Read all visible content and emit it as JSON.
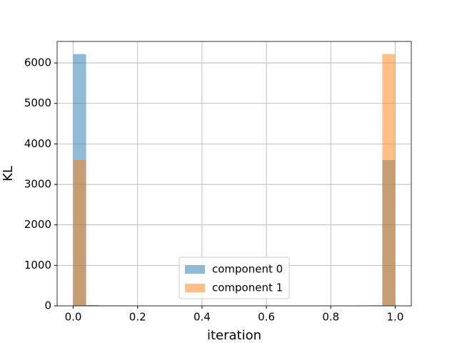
{
  "chart_data": {
    "type": "histogram",
    "x_label": "iteration",
    "y_label": "KL",
    "bins": [
      0,
      0.04,
      0.08,
      0.12,
      0.16,
      0.2,
      0.24,
      0.28,
      0.32,
      0.36,
      0.4,
      0.44,
      0.48,
      0.52,
      0.56,
      0.6,
      0.64,
      0.68,
      0.72,
      0.76,
      0.8,
      0.84,
      0.88,
      0.92,
      0.96,
      1
    ],
    "series": [
      {
        "name": "component 0",
        "color": "#1f77b4",
        "values": [
          6220,
          20,
          10,
          10,
          5,
          0,
          0,
          0,
          0,
          0,
          0,
          0,
          0,
          0,
          0,
          0,
          0,
          0,
          0,
          0,
          0,
          0,
          0,
          0,
          3600
        ]
      },
      {
        "name": "component 1",
        "color": "#ff7f0e",
        "values": [
          3600,
          10,
          5,
          0,
          0,
          0,
          0,
          0,
          0,
          0,
          0,
          0,
          0,
          0,
          0,
          0,
          0,
          0,
          0,
          0,
          0,
          5,
          10,
          15,
          6220
        ]
      }
    ],
    "alpha": 0.5,
    "xlim": [
      -0.05,
      1.05
    ],
    "xticks": [
      {
        "value": 0,
        "label": "0.0"
      },
      {
        "value": 0.2,
        "label": "0.2"
      },
      {
        "value": 0.4,
        "label": "0.4"
      },
      {
        "value": 0.6,
        "label": "0.6"
      },
      {
        "value": 0.8,
        "label": "0.8"
      },
      {
        "value": 1,
        "label": "1.0"
      }
    ],
    "ylim": [
      0,
      6531
    ],
    "yticks": [
      0,
      1000,
      2000,
      3000,
      4000,
      5000,
      6000
    ],
    "grid": true,
    "legend": "lower center"
  }
}
